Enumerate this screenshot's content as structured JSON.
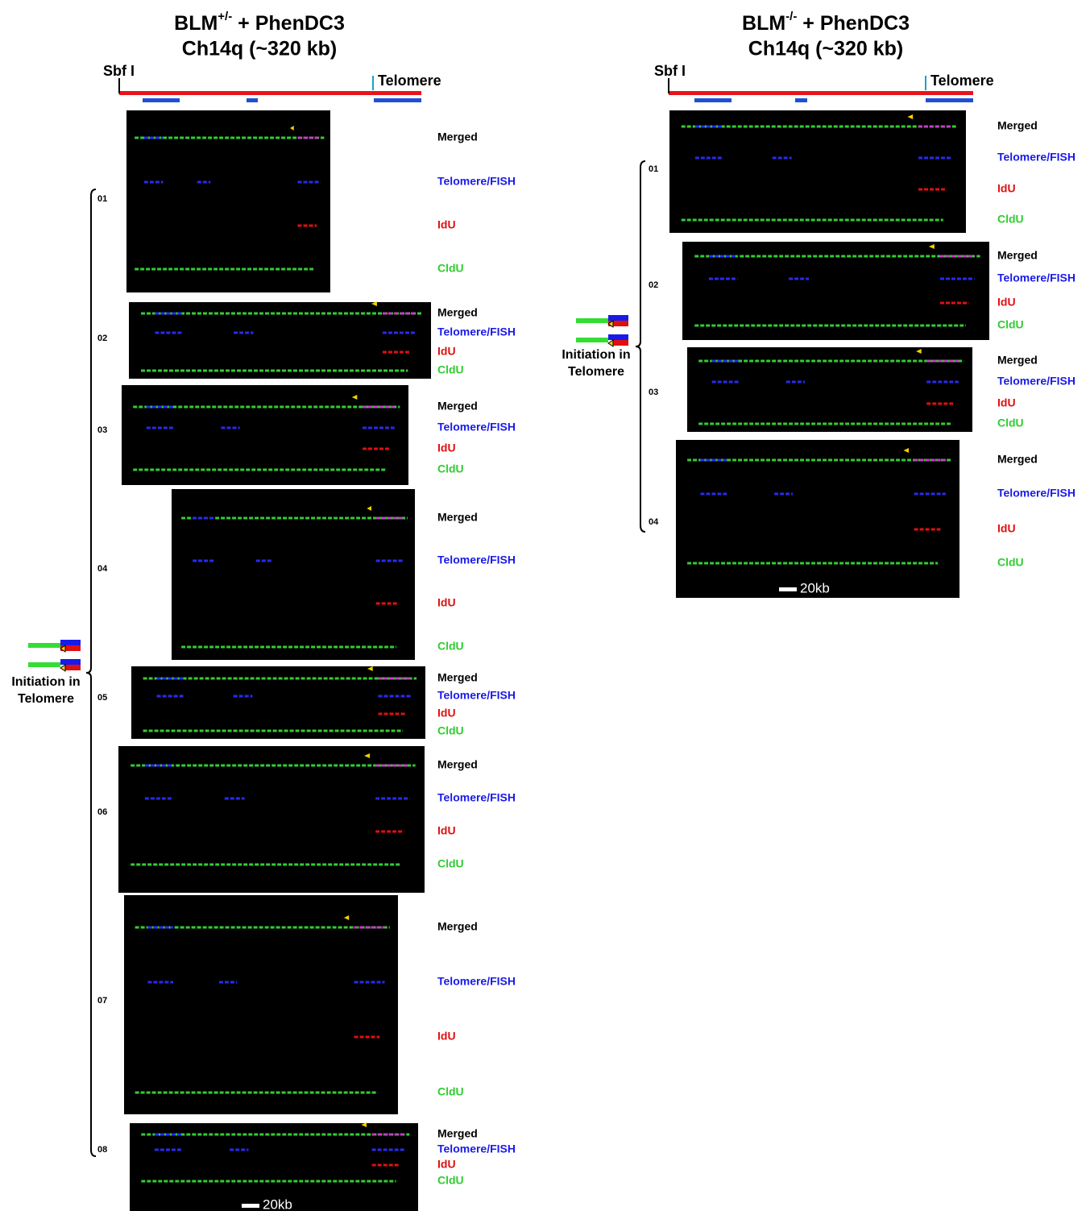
{
  "panels": [
    {
      "title": {
        "prefix": "BLM",
        "sup": "+/-",
        "suffix": " + PhenDC3"
      },
      "subtitle": "Ch14q (~320 kb)",
      "site": "Sbf I",
      "end": "Telomere",
      "annotation": [
        "Initiation in",
        "Telomere"
      ],
      "scale": "20kb",
      "molecules": [
        {
          "id": "01",
          "channels": [
            "Merged",
            "Telomere/FISH",
            "IdU",
            "CldU"
          ]
        },
        {
          "id": "02",
          "channels": [
            "Merged",
            "Telomere/FISH",
            "IdU",
            "CldU"
          ]
        },
        {
          "id": "03",
          "channels": [
            "Merged",
            "Telomere/FISH",
            "IdU",
            "CldU"
          ]
        },
        {
          "id": "04",
          "channels": [
            "Merged",
            "Telomere/FISH",
            "IdU",
            "CldU"
          ]
        },
        {
          "id": "05",
          "channels": [
            "Merged",
            "Telomere/FISH",
            "IdU",
            "CldU"
          ]
        },
        {
          "id": "06",
          "channels": [
            "Merged",
            "Telomere/FISH",
            "IdU",
            "CldU"
          ]
        },
        {
          "id": "07",
          "channels": [
            "Merged",
            "Telomere/FISH",
            "IdU",
            "CldU"
          ]
        },
        {
          "id": "08",
          "channels": [
            "Merged",
            "Telomere/FISH",
            "IdU",
            "CldU"
          ]
        }
      ]
    },
    {
      "title": {
        "prefix": "BLM",
        "sup": "-/-",
        "suffix": " + PhenDC3"
      },
      "subtitle": "Ch14q (~320 kb)",
      "site": "Sbf I",
      "end": "Telomere",
      "annotation": [
        "Initiation in",
        "Telomere"
      ],
      "scale": "20kb",
      "molecules": [
        {
          "id": "01",
          "channels": [
            "Merged",
            "Telomere/FISH",
            "IdU",
            "CldU"
          ]
        },
        {
          "id": "02",
          "channels": [
            "Merged",
            "Telomere/FISH",
            "IdU",
            "CldU"
          ]
        },
        {
          "id": "03",
          "channels": [
            "Merged",
            "Telomere/FISH",
            "IdU",
            "CldU"
          ]
        },
        {
          "id": "04",
          "channels": [
            "Merged",
            "Telomere/FISH",
            "IdU",
            "CldU"
          ]
        }
      ]
    }
  ]
}
